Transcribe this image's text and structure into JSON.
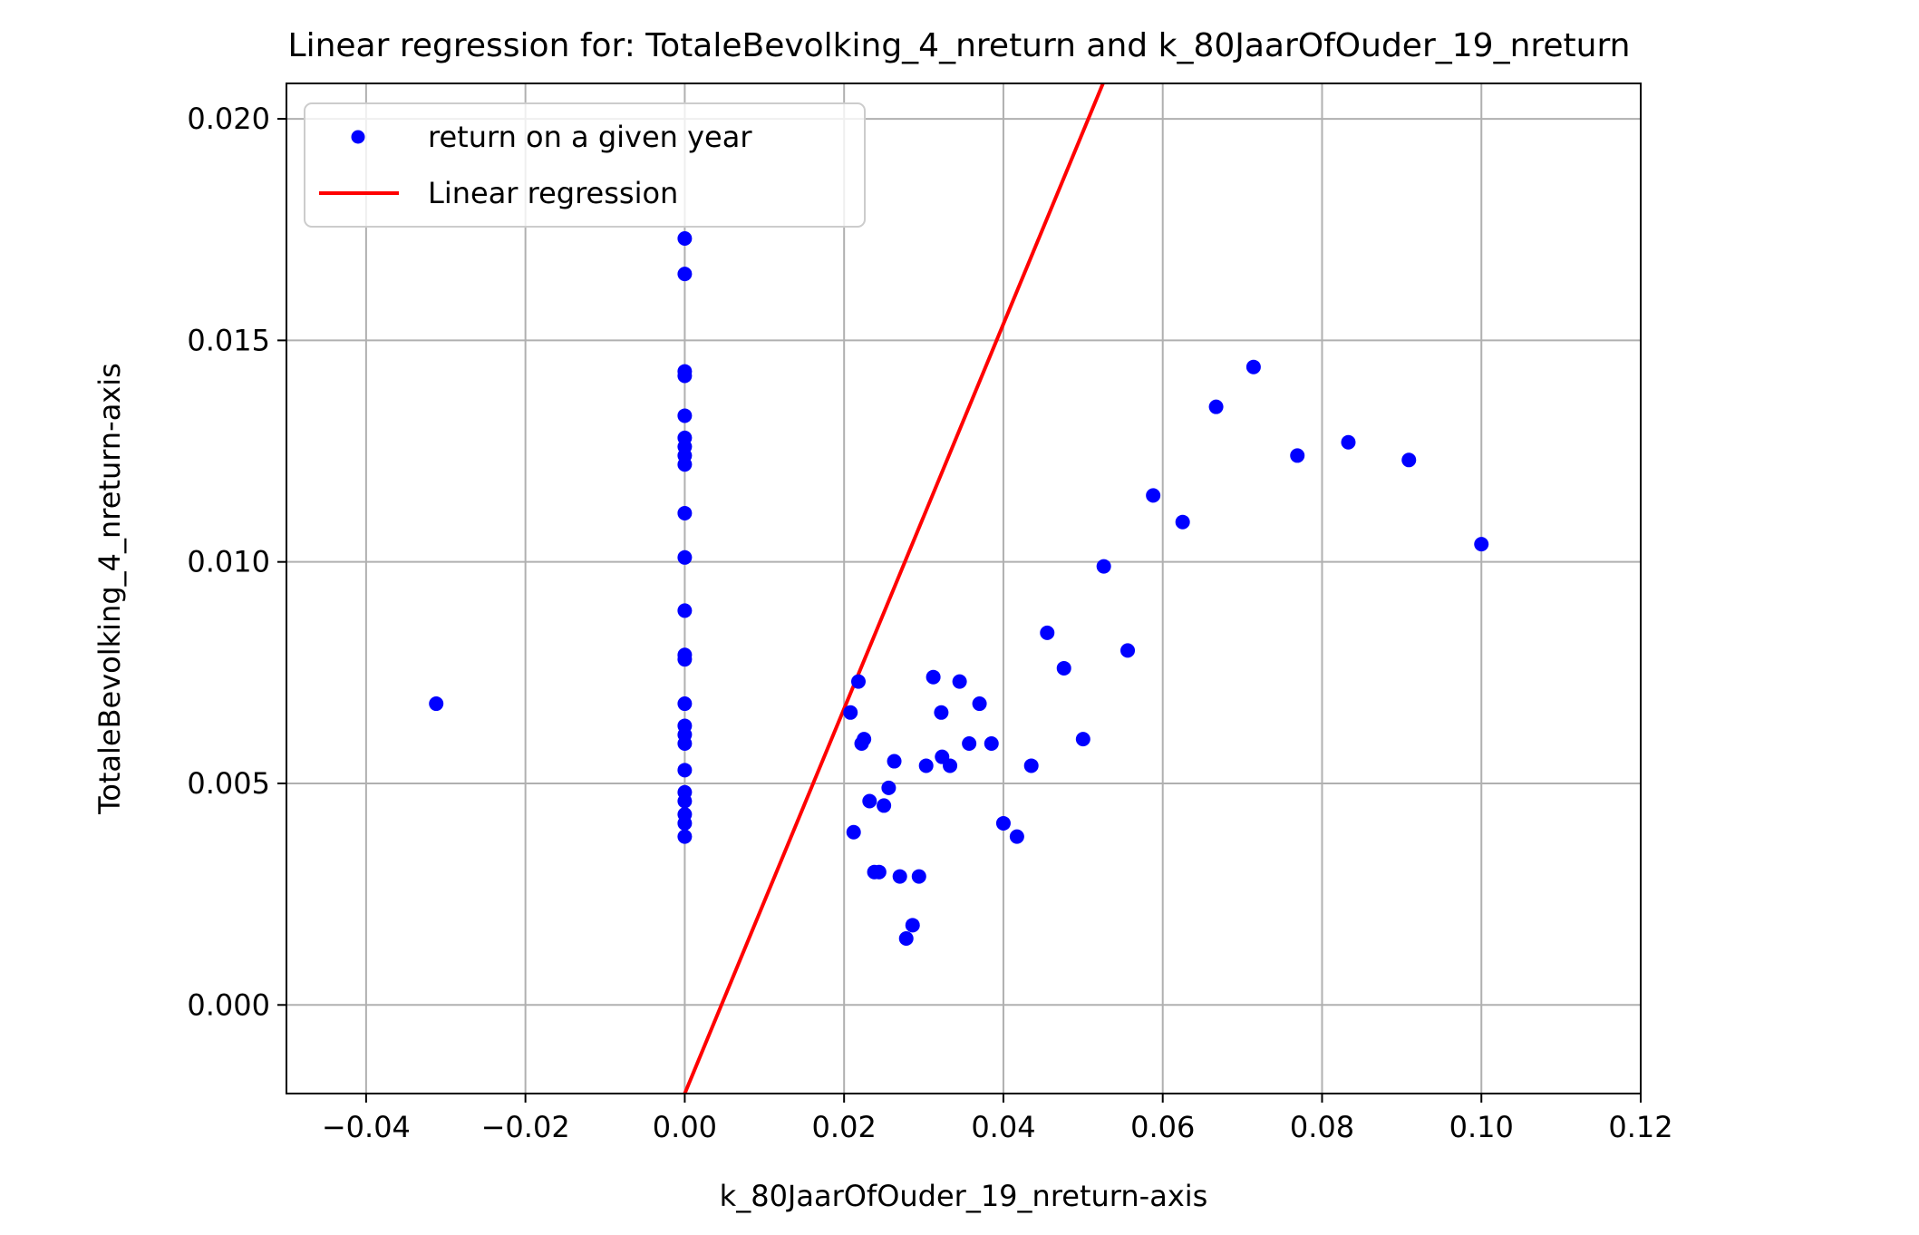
{
  "chart_data": {
    "type": "scatter",
    "title": "Linear regression for: TotaleBevolking_4_nreturn and k_80JaarOfOuder_19_nreturn",
    "xlabel": "k_80JaarOfOuder_19_nreturn-axis",
    "ylabel": "TotaleBevolking_4_nreturn-axis",
    "xlim": [
      -0.05,
      0.12
    ],
    "ylim": [
      -0.002,
      0.0208
    ],
    "xticks": [
      "−0.04",
      "−0.02",
      "0.00",
      "0.02",
      "0.04",
      "0.06",
      "0.08",
      "0.10",
      "0.12"
    ],
    "xtick_values": [
      -0.04,
      -0.02,
      0.0,
      0.02,
      0.04,
      0.06,
      0.08,
      0.1,
      0.12
    ],
    "yticks": [
      "0.000",
      "0.005",
      "0.010",
      "0.015",
      "0.020"
    ],
    "ytick_values": [
      0.0,
      0.005,
      0.01,
      0.015,
      0.02
    ],
    "grid": true,
    "legend_position": "top-left",
    "colors": {
      "scatter": "#0000ff",
      "line": "#ff0000",
      "grid": "#b0b0b0"
    },
    "series": [
      {
        "name": "return on a given year",
        "kind": "scatter",
        "points": [
          [
            -0.0312,
            0.0068
          ],
          [
            0.0,
            0.0173
          ],
          [
            0.0,
            0.0165
          ],
          [
            0.0,
            0.0143
          ],
          [
            0.0,
            0.0142
          ],
          [
            0.0,
            0.0133
          ],
          [
            0.0,
            0.0128
          ],
          [
            0.0,
            0.0126
          ],
          [
            0.0,
            0.0124
          ],
          [
            0.0,
            0.0122
          ],
          [
            0.0,
            0.0111
          ],
          [
            0.0,
            0.0101
          ],
          [
            0.0,
            0.0089
          ],
          [
            0.0,
            0.0079
          ],
          [
            0.0,
            0.0078
          ],
          [
            0.0,
            0.0068
          ],
          [
            0.0,
            0.0063
          ],
          [
            0.0,
            0.0061
          ],
          [
            0.0,
            0.0059
          ],
          [
            0.0,
            0.0053
          ],
          [
            0.0,
            0.0048
          ],
          [
            0.0,
            0.0046
          ],
          [
            0.0,
            0.0043
          ],
          [
            0.0,
            0.0041
          ],
          [
            0.0,
            0.0038
          ],
          [
            0.0208,
            0.0066
          ],
          [
            0.0212,
            0.0039
          ],
          [
            0.0218,
            0.0073
          ],
          [
            0.0222,
            0.0059
          ],
          [
            0.0225,
            0.006
          ],
          [
            0.0232,
            0.0046
          ],
          [
            0.0238,
            0.003
          ],
          [
            0.0244,
            0.003
          ],
          [
            0.025,
            0.0045
          ],
          [
            0.0256,
            0.0049
          ],
          [
            0.0263,
            0.0055
          ],
          [
            0.027,
            0.0029
          ],
          [
            0.0278,
            0.0015
          ],
          [
            0.0286,
            0.0018
          ],
          [
            0.0294,
            0.0029
          ],
          [
            0.0303,
            0.0054
          ],
          [
            0.0312,
            0.0074
          ],
          [
            0.0322,
            0.0066
          ],
          [
            0.0323,
            0.0056
          ],
          [
            0.0333,
            0.0054
          ],
          [
            0.0345,
            0.0073
          ],
          [
            0.0357,
            0.0059
          ],
          [
            0.037,
            0.0068
          ],
          [
            0.0385,
            0.0059
          ],
          [
            0.04,
            0.0041
          ],
          [
            0.0417,
            0.0038
          ],
          [
            0.0435,
            0.0054
          ],
          [
            0.0455,
            0.0084
          ],
          [
            0.0476,
            0.0076
          ],
          [
            0.05,
            0.006
          ],
          [
            0.0526,
            0.0099
          ],
          [
            0.0556,
            0.008
          ],
          [
            0.0588,
            0.0115
          ],
          [
            0.0625,
            0.0109
          ],
          [
            0.0667,
            0.0135
          ],
          [
            0.0714,
            0.0144
          ],
          [
            0.0769,
            0.0124
          ],
          [
            0.0833,
            0.0127
          ],
          [
            0.0909,
            0.0123
          ],
          [
            0.1,
            0.0104
          ]
        ]
      },
      {
        "name": "Linear regression",
        "kind": "line",
        "points": [
          [
            0.0,
            -0.002
          ],
          [
            0.0525,
            0.0208
          ]
        ]
      }
    ]
  }
}
